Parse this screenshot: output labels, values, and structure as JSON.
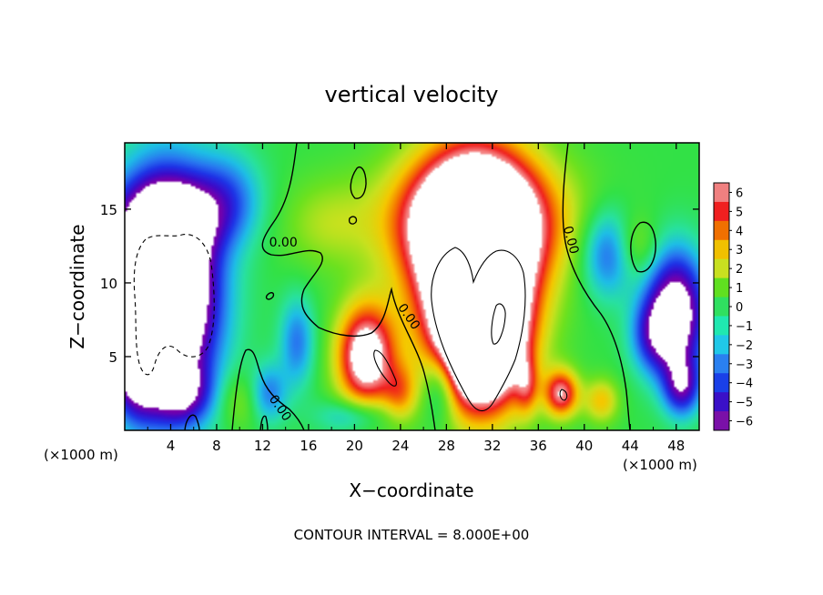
{
  "chart_data": {
    "type": "heatmap",
    "title": "vertical velocity",
    "xlabel": "X−coordinate",
    "ylabel": "Z−coordinate",
    "x_unit_left": "(×1000 m)",
    "x_unit_right": "(×1000 m)",
    "xlim": [
      0,
      50
    ],
    "ylim": [
      0,
      19.5
    ],
    "x_ticks": [
      4,
      8,
      12,
      16,
      20,
      24,
      28,
      32,
      36,
      40,
      44,
      48
    ],
    "y_ticks": [
      5,
      10,
      15
    ],
    "x_tick_labels": [
      "4",
      "8",
      "12",
      "16",
      "20",
      "24",
      "28",
      "32",
      "36",
      "40",
      "44",
      "48"
    ],
    "y_tick_labels": [
      "5",
      "10",
      "15"
    ],
    "colorbar": {
      "range": [
        -6,
        6
      ],
      "ticks": [
        6,
        5,
        4,
        3,
        2,
        1,
        0,
        -1,
        -2,
        -3,
        -4,
        -5,
        -6
      ],
      "tick_labels": [
        "6",
        "5",
        "4",
        "3",
        "2",
        "1",
        "0",
        "−1",
        "−2",
        "−3",
        "−4",
        "−5",
        "−6"
      ],
      "colors": [
        "#7a10a8",
        "#3a10c8",
        "#1a40e8",
        "#2a80f0",
        "#20c8e8",
        "#20e8b0",
        "#30e060",
        "#60e020",
        "#c8e020",
        "#f0c000",
        "#f07000",
        "#f02020",
        "#f08080"
      ]
    },
    "contour_labels": [
      {
        "text": "0.00",
        "x": 13.8,
        "y": 12.7,
        "angle": 0
      },
      {
        "text": "0.00",
        "x": 38.8,
        "y": 12.9,
        "angle": 75
      },
      {
        "text": "0.00",
        "x": 24.7,
        "y": 7.7,
        "angle": 55
      },
      {
        "text": "0.00",
        "x": 13.5,
        "y": 1.5,
        "angle": 55
      }
    ],
    "annotation": "CONTOUR INTERVAL = 8.000E+00",
    "field_blobs": [
      {
        "x": 3.5,
        "z": 9.5,
        "rx": 4.2,
        "rz": 7.0,
        "a": -14
      },
      {
        "x": 4.0,
        "z": 14.5,
        "rx": 5.0,
        "rz": 2.5,
        "a": -4
      },
      {
        "x": 1.0,
        "z": 4.0,
        "rx": 2.0,
        "rz": 3.0,
        "a": -5
      },
      {
        "x": 5.0,
        "z": 2.5,
        "rx": 2.5,
        "rz": 2.0,
        "a": -4
      },
      {
        "x": 48.0,
        "z": 8.0,
        "rx": 2.5,
        "rz": 4.0,
        "a": -8
      },
      {
        "x": 48.5,
        "z": 3.0,
        "rx": 1.6,
        "rz": 2.0,
        "a": -5
      },
      {
        "x": 42.0,
        "z": 12.0,
        "rx": 2.2,
        "rz": 3.0,
        "a": -3.5
      },
      {
        "x": 46.0,
        "z": 6.5,
        "rx": 2.0,
        "rz": 2.5,
        "a": -3.5
      },
      {
        "x": 15.0,
        "z": 6.0,
        "rx": 1.5,
        "rz": 3.0,
        "a": -3
      },
      {
        "x": 12.5,
        "z": 2.5,
        "rx": 1.6,
        "rz": 2.0,
        "a": -3
      },
      {
        "x": 27.5,
        "z": 3.0,
        "rx": 1.5,
        "rz": 2.5,
        "a": -3
      },
      {
        "x": 9.0,
        "z": 16.0,
        "rx": 3.0,
        "rz": 3.0,
        "a": -2.5
      },
      {
        "x": 20.0,
        "z": 1.0,
        "rx": 3.0,
        "rz": 1.2,
        "a": -2.5
      },
      {
        "x": 30.5,
        "z": 12.0,
        "rx": 5.0,
        "rz": 6.5,
        "a": 14
      },
      {
        "x": 31.0,
        "z": 6.0,
        "rx": 3.5,
        "rz": 4.5,
        "a": 12
      },
      {
        "x": 30.5,
        "z": 14.5,
        "rx": 8.0,
        "rz": 4.0,
        "a": 5
      },
      {
        "x": 21.0,
        "z": 5.0,
        "rx": 2.5,
        "rz": 3.5,
        "a": 8
      },
      {
        "x": 38.0,
        "z": 2.5,
        "rx": 1.5,
        "rz": 1.6,
        "a": 6
      },
      {
        "x": 41.5,
        "z": 2.0,
        "rx": 1.5,
        "rz": 1.5,
        "a": 3
      },
      {
        "x": 35.0,
        "z": 3.0,
        "rx": 1.0,
        "rz": 2.0,
        "a": 3
      },
      {
        "x": 24.0,
        "z": 2.5,
        "rx": 1.5,
        "rz": 2.0,
        "a": 3
      },
      {
        "x": 17.5,
        "z": 14.0,
        "rx": 4.0,
        "rz": 3.0,
        "a": 1.5
      },
      {
        "x": 10.0,
        "z": 2.0,
        "rx": 2.0,
        "rz": 2.0,
        "a": 1.5
      },
      {
        "x": 44.5,
        "z": 12.5,
        "rx": 1.8,
        "rz": 2.0,
        "a": 1.5
      }
    ]
  }
}
